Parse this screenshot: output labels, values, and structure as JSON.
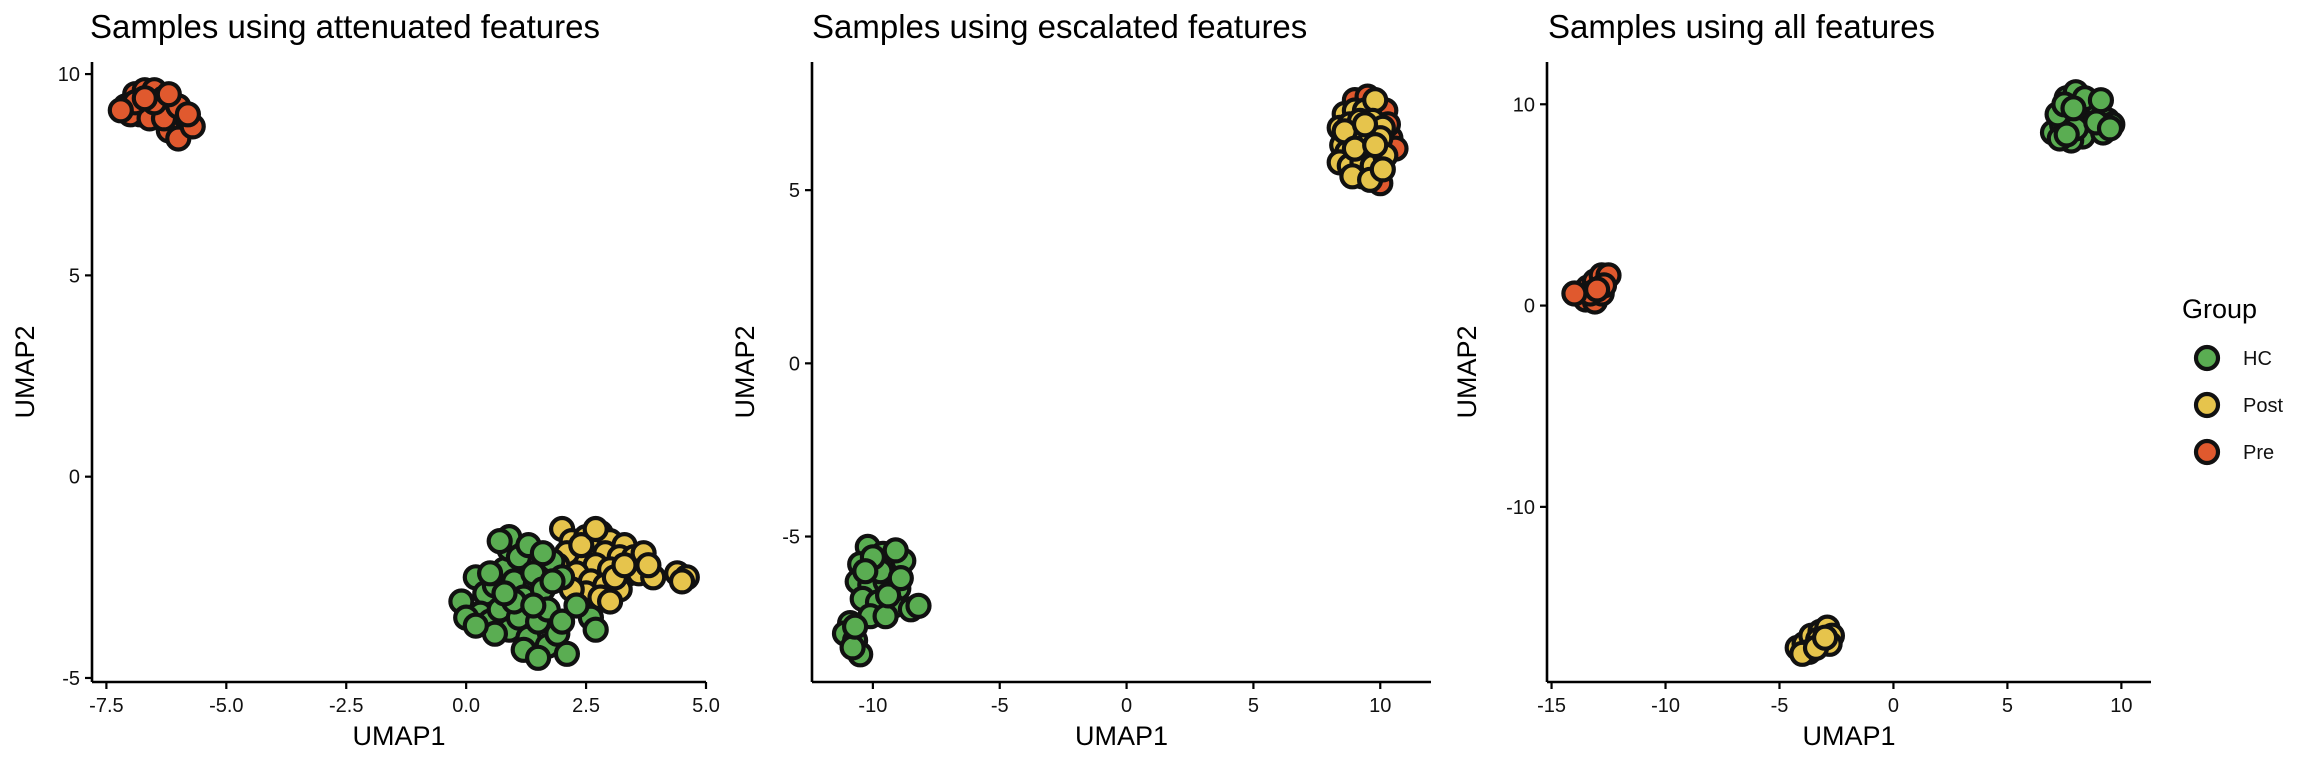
{
  "legend": {
    "title": "Group",
    "items": [
      {
        "label": "HC",
        "color": "#5aad52"
      },
      {
        "label": "Post",
        "color": "#e6c44c"
      },
      {
        "label": "Pre",
        "color": "#e0592e"
      }
    ]
  },
  "chart_data": [
    {
      "type": "scatter",
      "title": "Samples using attenuated features",
      "xlabel": "UMAP1",
      "ylabel": "UMAP2",
      "xlim": [
        -7.8,
        5.0
      ],
      "ylim": [
        -5.1,
        10.3
      ],
      "xticks": [
        -7.5,
        -5.0,
        -2.5,
        0.0,
        2.5,
        5.0
      ],
      "xtick_labels": [
        "-7.5",
        "-5.0",
        "-2.5",
        "0.0",
        "2.5",
        "5.0"
      ],
      "yticks": [
        -5,
        0,
        5,
        10
      ],
      "ytick_labels": [
        "-5",
        "0",
        "5",
        "10"
      ],
      "grid": false,
      "series": [
        {
          "name": "Pre",
          "color": "#e0592e",
          "points": [
            [
              -7.1,
              9.2
            ],
            [
              -6.9,
              9.5
            ],
            [
              -6.7,
              9.6
            ],
            [
              -6.5,
              9.6
            ],
            [
              -6.3,
              9.4
            ],
            [
              -6.8,
              9.0
            ],
            [
              -6.6,
              9.1
            ],
            [
              -6.4,
              9.2
            ],
            [
              -6.1,
              9.0
            ],
            [
              -5.9,
              8.8
            ],
            [
              -6.2,
              8.6
            ],
            [
              -6.0,
              8.4
            ],
            [
              -5.7,
              8.7
            ],
            [
              -7.0,
              9.0
            ],
            [
              -6.6,
              8.9
            ],
            [
              -6.3,
              8.9
            ],
            [
              -6.0,
              9.2
            ],
            [
              -6.9,
              9.3
            ],
            [
              -6.5,
              9.3
            ],
            [
              -6.2,
              9.5
            ],
            [
              -7.2,
              9.1
            ],
            [
              -6.7,
              9.4
            ],
            [
              -5.8,
              9.0
            ]
          ]
        },
        {
          "name": "Post",
          "color": "#e6c44c",
          "points": [
            [
              2.0,
              -1.3
            ],
            [
              2.2,
              -1.6
            ],
            [
              2.5,
              -1.5
            ],
            [
              2.8,
              -1.4
            ],
            [
              3.0,
              -1.6
            ],
            [
              3.3,
              -1.7
            ],
            [
              2.6,
              -1.8
            ],
            [
              2.9,
              -1.9
            ],
            [
              3.2,
              -2.0
            ],
            [
              3.5,
              -2.0
            ],
            [
              3.7,
              -1.9
            ],
            [
              2.4,
              -2.1
            ],
            [
              2.7,
              -2.2
            ],
            [
              3.0,
              -2.3
            ],
            [
              3.4,
              -2.4
            ],
            [
              3.6,
              -2.4
            ],
            [
              3.9,
              -2.5
            ],
            [
              2.3,
              -2.4
            ],
            [
              2.6,
              -2.6
            ],
            [
              2.9,
              -2.7
            ],
            [
              3.2,
              -2.8
            ],
            [
              2.5,
              -2.9
            ],
            [
              2.8,
              -3.0
            ],
            [
              4.4,
              -2.4
            ],
            [
              4.6,
              -2.5
            ],
            [
              4.5,
              -2.6
            ],
            [
              2.1,
              -1.9
            ],
            [
              3.8,
              -2.2
            ],
            [
              3.1,
              -2.5
            ],
            [
              2.4,
              -1.7
            ],
            [
              3.3,
              -2.2
            ],
            [
              1.9,
              -2.2
            ],
            [
              2.2,
              -2.8
            ],
            [
              3.0,
              -3.1
            ],
            [
              2.7,
              -1.3
            ]
          ]
        },
        {
          "name": "HC",
          "color": "#5aad52",
          "points": [
            [
              -0.1,
              -3.1
            ],
            [
              0.2,
              -2.5
            ],
            [
              0.4,
              -2.9
            ],
            [
              0.6,
              -2.7
            ],
            [
              0.8,
              -2.3
            ],
            [
              0.9,
              -1.8
            ],
            [
              1.1,
              -2.0
            ],
            [
              1.0,
              -2.6
            ],
            [
              1.2,
              -3.0
            ],
            [
              1.4,
              -2.4
            ],
            [
              1.6,
              -2.8
            ],
            [
              1.8,
              -2.1
            ],
            [
              2.0,
              -2.5
            ],
            [
              0.3,
              -3.4
            ],
            [
              0.5,
              -3.6
            ],
            [
              0.7,
              -3.3
            ],
            [
              0.9,
              -3.8
            ],
            [
              1.1,
              -3.5
            ],
            [
              1.3,
              -4.0
            ],
            [
              1.5,
              -3.6
            ],
            [
              1.7,
              -4.2
            ],
            [
              1.9,
              -3.9
            ],
            [
              2.1,
              -4.4
            ],
            [
              1.2,
              -4.3
            ],
            [
              1.5,
              -4.5
            ],
            [
              0.6,
              -3.9
            ],
            [
              0.9,
              -1.5
            ],
            [
              1.3,
              -1.7
            ],
            [
              0.0,
              -3.5
            ],
            [
              0.5,
              -2.4
            ],
            [
              1.0,
              -3.1
            ],
            [
              1.7,
              -3.3
            ],
            [
              2.0,
              -3.6
            ],
            [
              2.6,
              -3.5
            ],
            [
              2.7,
              -3.8
            ],
            [
              0.2,
              -3.7
            ],
            [
              1.4,
              -3.2
            ],
            [
              1.8,
              -2.6
            ],
            [
              0.8,
              -2.9
            ],
            [
              2.3,
              -3.2
            ],
            [
              1.6,
              -1.9
            ],
            [
              0.7,
              -1.6
            ]
          ]
        }
      ]
    },
    {
      "type": "scatter",
      "title": "Samples using escalated features",
      "xlabel": "UMAP1",
      "ylabel": "UMAP2",
      "xlim": [
        -12.4,
        12.0
      ],
      "ylim": [
        -9.2,
        8.7
      ],
      "xticks": [
        -10,
        -5,
        0,
        5,
        10
      ],
      "xtick_labels": [
        "-10",
        "-5",
        "0",
        "5",
        "10"
      ],
      "yticks": [
        -5,
        0,
        5
      ],
      "ytick_labels": [
        "-5",
        "0",
        "5"
      ],
      "grid": false,
      "series": [
        {
          "name": "Pre",
          "color": "#e0592e",
          "points": [
            [
              9.0,
              7.6
            ],
            [
              9.5,
              7.7
            ],
            [
              10.2,
              7.3
            ],
            [
              8.6,
              6.4
            ],
            [
              10.4,
              6.5
            ],
            [
              10.6,
              6.2
            ],
            [
              9.0,
              5.6
            ],
            [
              9.8,
              5.5
            ],
            [
              10.0,
              5.2
            ],
            [
              8.7,
              5.9
            ],
            [
              10.3,
              6.9
            ],
            [
              9.3,
              5.4
            ]
          ]
        },
        {
          "name": "Post",
          "color": "#e6c44c",
          "points": [
            [
              8.6,
              7.2
            ],
            [
              9.0,
              7.3
            ],
            [
              9.4,
              7.3
            ],
            [
              9.8,
              7.6
            ],
            [
              8.4,
              6.8
            ],
            [
              8.8,
              6.9
            ],
            [
              9.2,
              7.0
            ],
            [
              9.7,
              7.0
            ],
            [
              10.1,
              6.8
            ],
            [
              8.5,
              6.3
            ],
            [
              8.9,
              6.5
            ],
            [
              9.3,
              6.6
            ],
            [
              9.6,
              6.4
            ],
            [
              10.0,
              6.5
            ],
            [
              8.7,
              6.1
            ],
            [
              9.1,
              6.0
            ],
            [
              9.5,
              6.1
            ],
            [
              9.9,
              6.0
            ],
            [
              8.4,
              5.8
            ],
            [
              8.8,
              5.7
            ],
            [
              9.3,
              5.8
            ],
            [
              9.7,
              5.7
            ],
            [
              10.2,
              6.0
            ],
            [
              8.6,
              6.7
            ],
            [
              9.0,
              6.2
            ],
            [
              9.4,
              6.9
            ],
            [
              9.8,
              6.3
            ],
            [
              8.9,
              5.4
            ],
            [
              9.6,
              5.3
            ],
            [
              10.1,
              5.6
            ]
          ]
        },
        {
          "name": "HC",
          "color": "#5aad52",
          "points": [
            [
              -10.2,
              -5.3
            ],
            [
              -9.6,
              -5.5
            ],
            [
              -9.0,
              -5.6
            ],
            [
              -10.5,
              -5.8
            ],
            [
              -9.9,
              -5.9
            ],
            [
              -9.3,
              -6.0
            ],
            [
              -8.8,
              -5.7
            ],
            [
              -10.6,
              -6.3
            ],
            [
              -10.1,
              -6.4
            ],
            [
              -9.5,
              -6.3
            ],
            [
              -9.0,
              -6.5
            ],
            [
              -10.4,
              -6.8
            ],
            [
              -9.8,
              -6.9
            ],
            [
              -9.2,
              -7.0
            ],
            [
              -8.5,
              -7.1
            ],
            [
              -8.2,
              -7.0
            ],
            [
              -10.1,
              -7.3
            ],
            [
              -9.5,
              -7.3
            ],
            [
              -10.9,
              -7.5
            ],
            [
              -11.1,
              -7.8
            ],
            [
              -10.7,
              -8.0
            ],
            [
              -10.5,
              -8.4
            ],
            [
              -10.8,
              -8.2
            ],
            [
              -9.7,
              -6.0
            ],
            [
              -10.0,
              -5.6
            ],
            [
              -9.4,
              -6.7
            ],
            [
              -10.3,
              -6.0
            ],
            [
              -9.1,
              -5.4
            ],
            [
              -8.9,
              -6.2
            ],
            [
              -10.7,
              -7.6
            ]
          ]
        }
      ]
    },
    {
      "type": "scatter",
      "title": "Samples using all features",
      "xlabel": "UMAP1",
      "ylabel": "UMAP2",
      "xlim": [
        -15.2,
        11.3
      ],
      "ylim": [
        -18.7,
        12.1
      ],
      "xticks": [
        -15,
        -10,
        -5,
        0,
        5,
        10
      ],
      "xtick_labels": [
        "-15",
        "-10",
        "-5",
        "0",
        "5",
        "10"
      ],
      "yticks": [
        -10,
        0,
        10
      ],
      "ytick_labels": [
        "-10",
        "0",
        "10"
      ],
      "grid": false,
      "series": [
        {
          "name": "HC",
          "color": "#5aad52",
          "points": [
            [
              7.0,
              8.6
            ],
            [
              7.4,
              9.0
            ],
            [
              7.8,
              9.4
            ],
            [
              8.2,
              9.9
            ],
            [
              7.6,
              10.3
            ],
            [
              8.0,
              10.6
            ],
            [
              8.6,
              10.0
            ],
            [
              9.0,
              9.6
            ],
            [
              9.4,
              9.2
            ],
            [
              8.8,
              8.8
            ],
            [
              8.3,
              8.4
            ],
            [
              7.8,
              8.2
            ],
            [
              7.3,
              8.3
            ],
            [
              9.2,
              8.6
            ],
            [
              9.6,
              9.0
            ],
            [
              7.2,
              9.5
            ],
            [
              7.5,
              10.0
            ],
            [
              8.4,
              10.3
            ],
            [
              9.1,
              10.2
            ],
            [
              8.0,
              8.8
            ],
            [
              7.6,
              8.5
            ],
            [
              8.9,
              9.1
            ],
            [
              9.5,
              8.8
            ],
            [
              7.9,
              9.8
            ]
          ]
        },
        {
          "name": "Pre",
          "color": "#e0592e",
          "points": [
            [
              -13.8,
              0.6
            ],
            [
              -13.4,
              0.9
            ],
            [
              -13.1,
              1.2
            ],
            [
              -12.8,
              1.5
            ],
            [
              -12.5,
              1.5
            ],
            [
              -13.5,
              0.3
            ],
            [
              -13.1,
              0.2
            ],
            [
              -12.8,
              0.6
            ],
            [
              -13.3,
              0.6
            ],
            [
              -12.7,
              1.0
            ],
            [
              -14.0,
              0.6
            ],
            [
              -13.0,
              0.8
            ]
          ]
        },
        {
          "name": "Post",
          "color": "#e6c44c",
          "points": [
            [
              -4.2,
              -17.0
            ],
            [
              -3.9,
              -16.8
            ],
            [
              -3.6,
              -16.4
            ],
            [
              -3.2,
              -16.2
            ],
            [
              -2.9,
              -16.0
            ],
            [
              -2.7,
              -16.4
            ],
            [
              -2.8,
              -16.8
            ],
            [
              -3.3,
              -16.6
            ],
            [
              -3.7,
              -17.2
            ],
            [
              -4.0,
              -17.3
            ],
            [
              -3.4,
              -17.0
            ],
            [
              -3.0,
              -16.5
            ]
          ]
        }
      ]
    }
  ]
}
